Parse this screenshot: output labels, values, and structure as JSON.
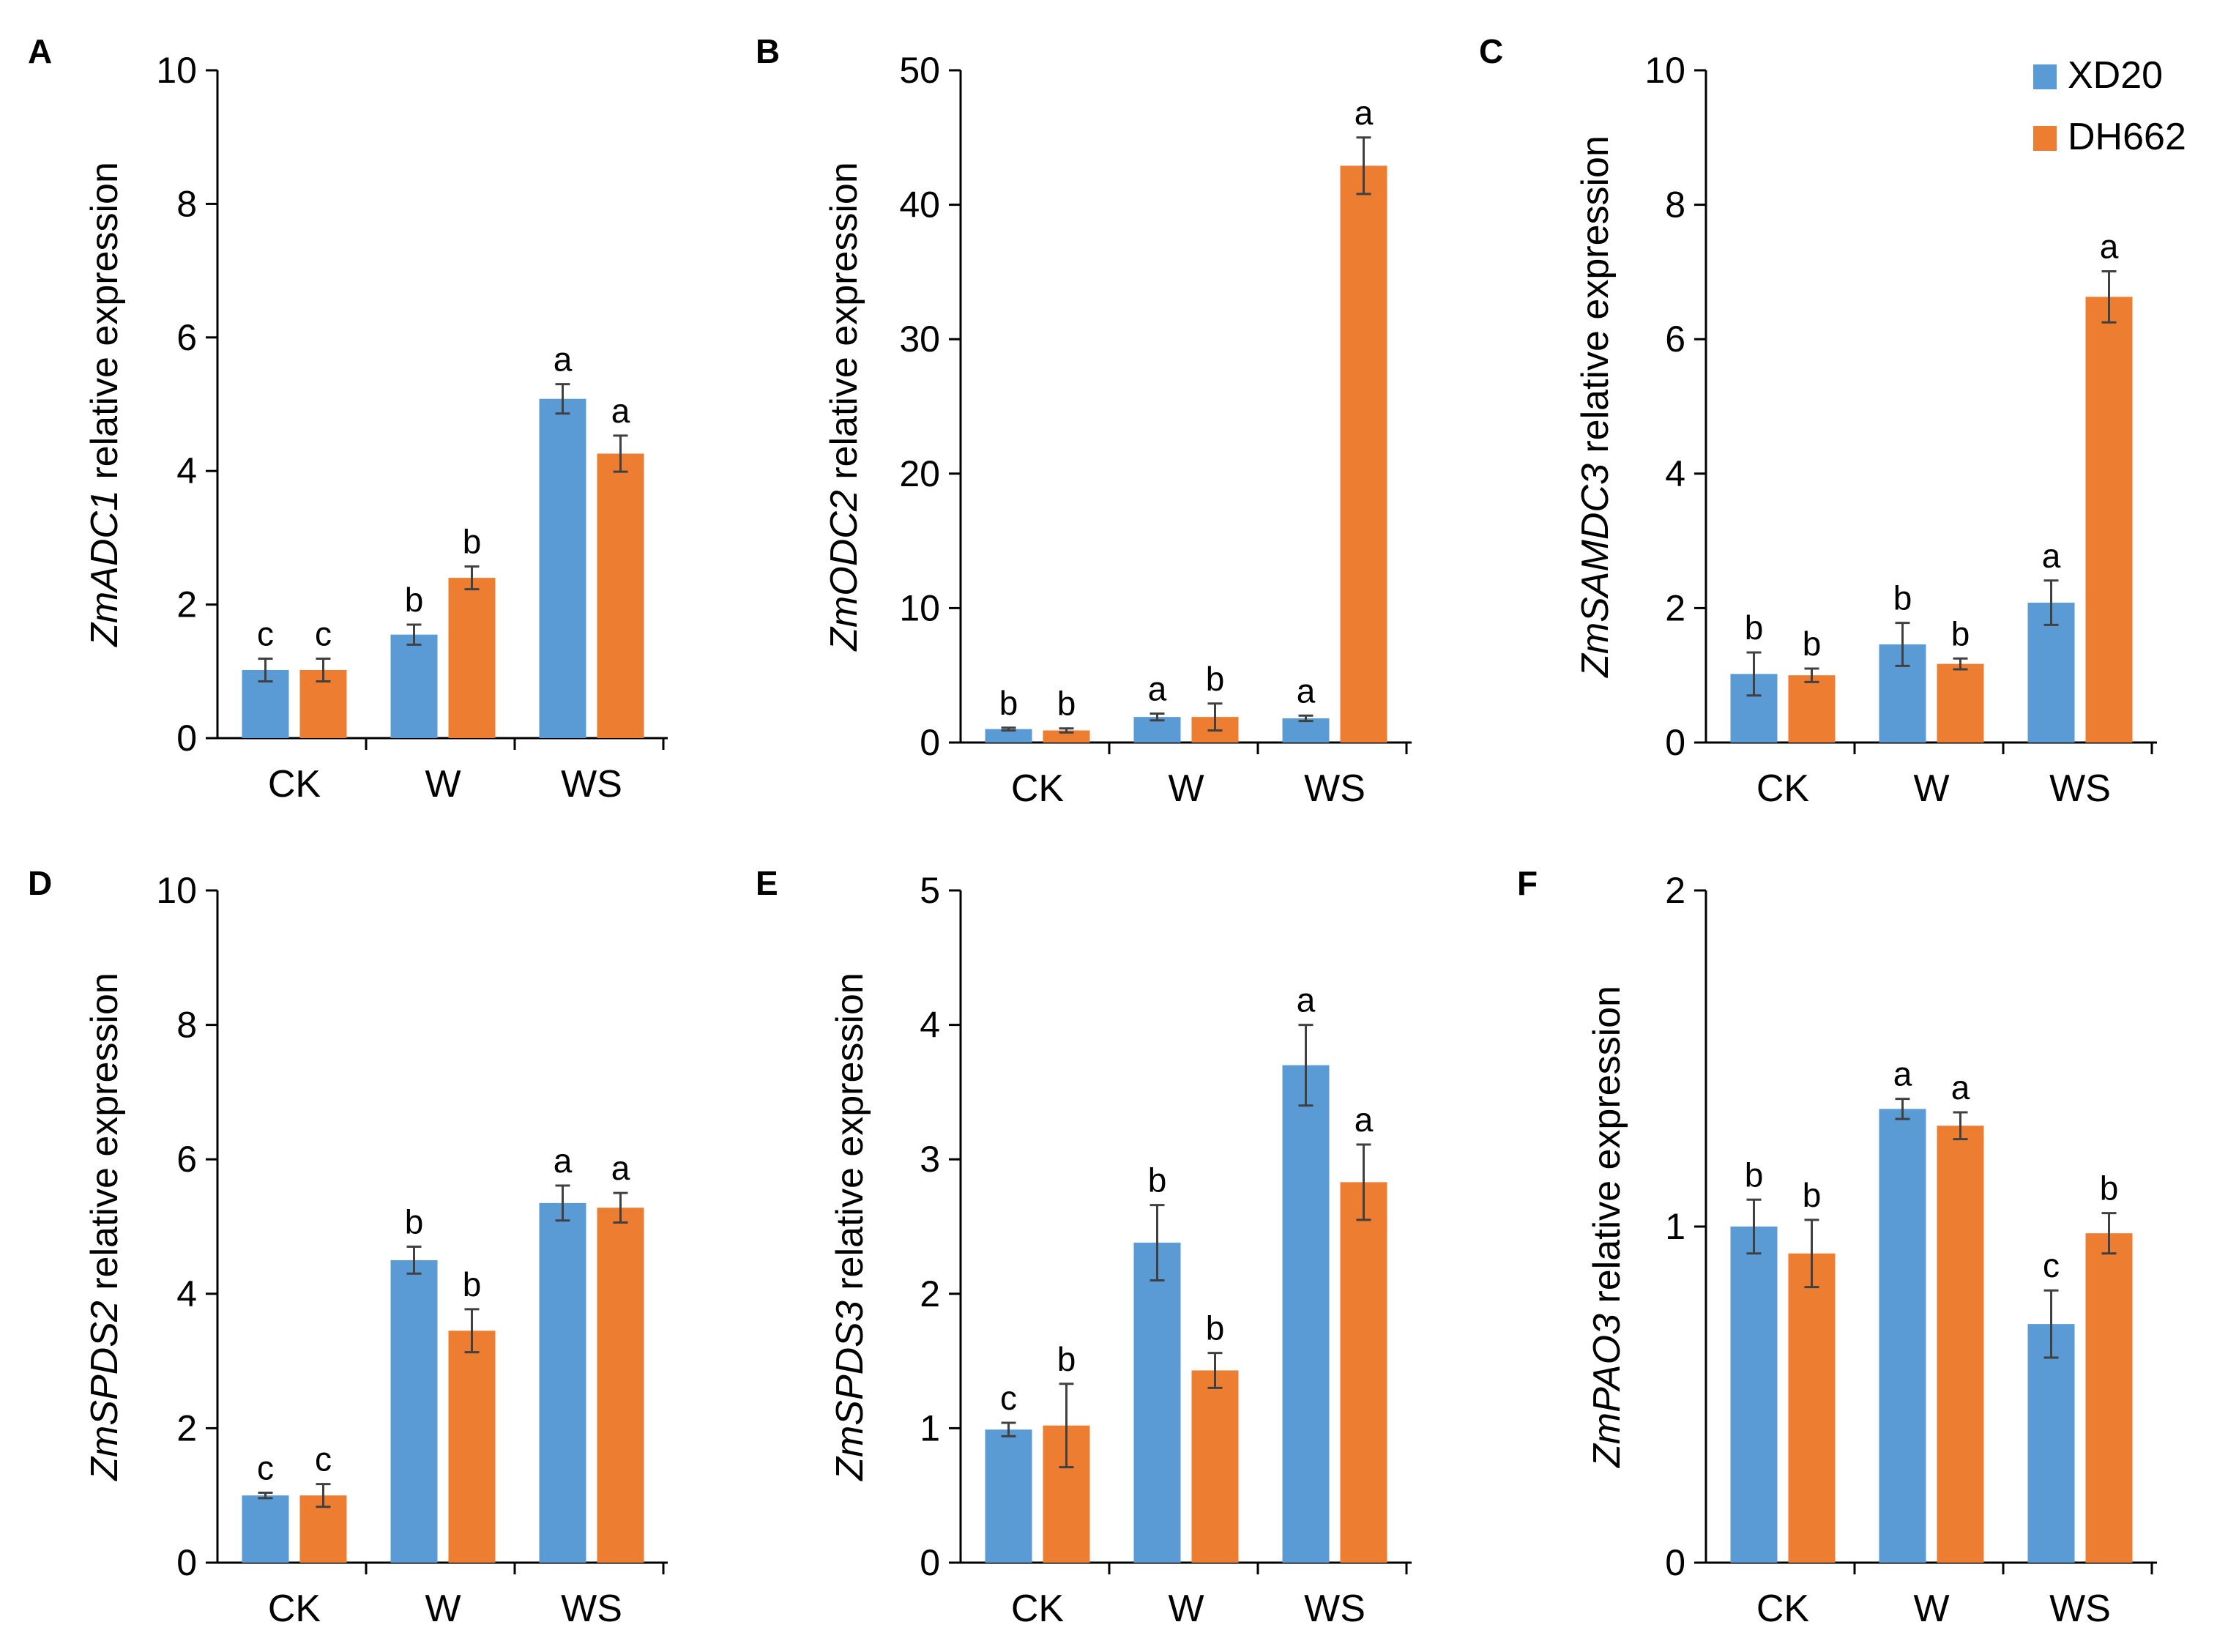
{
  "legend": {
    "series": [
      {
        "name": "XD20",
        "color": "#5b9bd5"
      },
      {
        "name": "DH662",
        "color": "#ed7d31"
      }
    ]
  },
  "chart_data": [
    {
      "type": "bar",
      "panel": "A",
      "ylabel_gene": "ZmADC1",
      "ylabel_suffix": " relative expression",
      "categories": [
        "CK",
        "W",
        "WS"
      ],
      "ylim": [
        0,
        10
      ],
      "yticks": [
        0,
        2,
        4,
        6,
        8,
        10
      ],
      "series": [
        {
          "name": "XD20",
          "values": [
            1.02,
            1.55,
            5.08
          ],
          "errors": [
            0.17,
            0.15,
            0.22
          ],
          "letters": [
            "c",
            "b",
            "a"
          ]
        },
        {
          "name": "DH662",
          "values": [
            1.02,
            2.4,
            4.26
          ],
          "errors": [
            0.17,
            0.17,
            0.27
          ],
          "letters": [
            "c",
            "b",
            "a"
          ]
        }
      ]
    },
    {
      "type": "bar",
      "panel": "B",
      "ylabel_gene": "ZmODC2",
      "ylabel_suffix": " relative expression",
      "categories": [
        "CK",
        "W",
        "WS"
      ],
      "ylim": [
        0,
        50
      ],
      "yticks": [
        0,
        10,
        20,
        30,
        40,
        50
      ],
      "series": [
        {
          "name": "XD20",
          "values": [
            1.0,
            1.9,
            1.8
          ],
          "errors": [
            0.1,
            0.25,
            0.2
          ],
          "letters": [
            "b",
            "a",
            "a"
          ]
        },
        {
          "name": "DH662",
          "values": [
            0.9,
            1.9,
            42.9
          ],
          "errors": [
            0.15,
            1.0,
            2.1
          ],
          "letters": [
            "b",
            "b",
            "a"
          ]
        }
      ]
    },
    {
      "type": "bar",
      "panel": "C",
      "ylabel_gene": "ZmSAMDC3",
      "ylabel_suffix": " relative expression",
      "categories": [
        "CK",
        "W",
        "WS"
      ],
      "ylim": [
        0,
        10
      ],
      "yticks": [
        0,
        2,
        4,
        6,
        8,
        10
      ],
      "series": [
        {
          "name": "XD20",
          "values": [
            1.02,
            1.46,
            2.08
          ],
          "errors": [
            0.32,
            0.32,
            0.33
          ],
          "letters": [
            "b",
            "b",
            "a"
          ]
        },
        {
          "name": "DH662",
          "values": [
            1.0,
            1.17,
            6.63
          ],
          "errors": [
            0.1,
            0.08,
            0.38
          ],
          "letters": [
            "b",
            "b",
            "a"
          ]
        }
      ]
    },
    {
      "type": "bar",
      "panel": "D",
      "ylabel_gene": "ZmSPDS2",
      "ylabel_suffix": " relative expression",
      "categories": [
        "CK",
        "W",
        "WS"
      ],
      "ylim": [
        0,
        10
      ],
      "yticks": [
        0,
        2,
        4,
        6,
        8,
        10
      ],
      "series": [
        {
          "name": "XD20",
          "values": [
            1.0,
            4.5,
            5.35
          ],
          "errors": [
            0.04,
            0.2,
            0.26
          ],
          "letters": [
            "c",
            "b",
            "a"
          ]
        },
        {
          "name": "DH662",
          "values": [
            1.0,
            3.45,
            5.28
          ],
          "errors": [
            0.17,
            0.32,
            0.22
          ],
          "letters": [
            "c",
            "b",
            "a"
          ]
        }
      ]
    },
    {
      "type": "bar",
      "panel": "E",
      "ylabel_gene": "ZmSPDS3",
      "ylabel_suffix": " relative expression",
      "categories": [
        "CK",
        "W",
        "WS"
      ],
      "ylim": [
        0,
        5
      ],
      "yticks": [
        0,
        1,
        2,
        3,
        4,
        5
      ],
      "series": [
        {
          "name": "XD20",
          "values": [
            0.99,
            2.38,
            3.7
          ],
          "errors": [
            0.05,
            0.28,
            0.3
          ],
          "letters": [
            "c",
            "b",
            "a"
          ]
        },
        {
          "name": "DH662",
          "values": [
            1.02,
            1.43,
            2.83
          ],
          "errors": [
            0.31,
            0.13,
            0.28
          ],
          "letters": [
            "b",
            "b",
            "a"
          ]
        }
      ]
    },
    {
      "type": "bar",
      "panel": "F",
      "ylabel_gene": "ZmPAO3",
      "ylabel_suffix": " relative expression",
      "categories": [
        "CK",
        "W",
        "WS"
      ],
      "ylim": [
        0,
        2
      ],
      "yticks": [
        0,
        1,
        2
      ],
      "series": [
        {
          "name": "XD20",
          "values": [
            1.0,
            1.35,
            0.71
          ],
          "errors": [
            0.08,
            0.03,
            0.1
          ],
          "letters": [
            "b",
            "a",
            "c"
          ]
        },
        {
          "name": "DH662",
          "values": [
            0.92,
            1.3,
            0.98
          ],
          "errors": [
            0.1,
            0.04,
            0.06
          ],
          "letters": [
            "b",
            "a",
            "b"
          ]
        }
      ]
    }
  ]
}
